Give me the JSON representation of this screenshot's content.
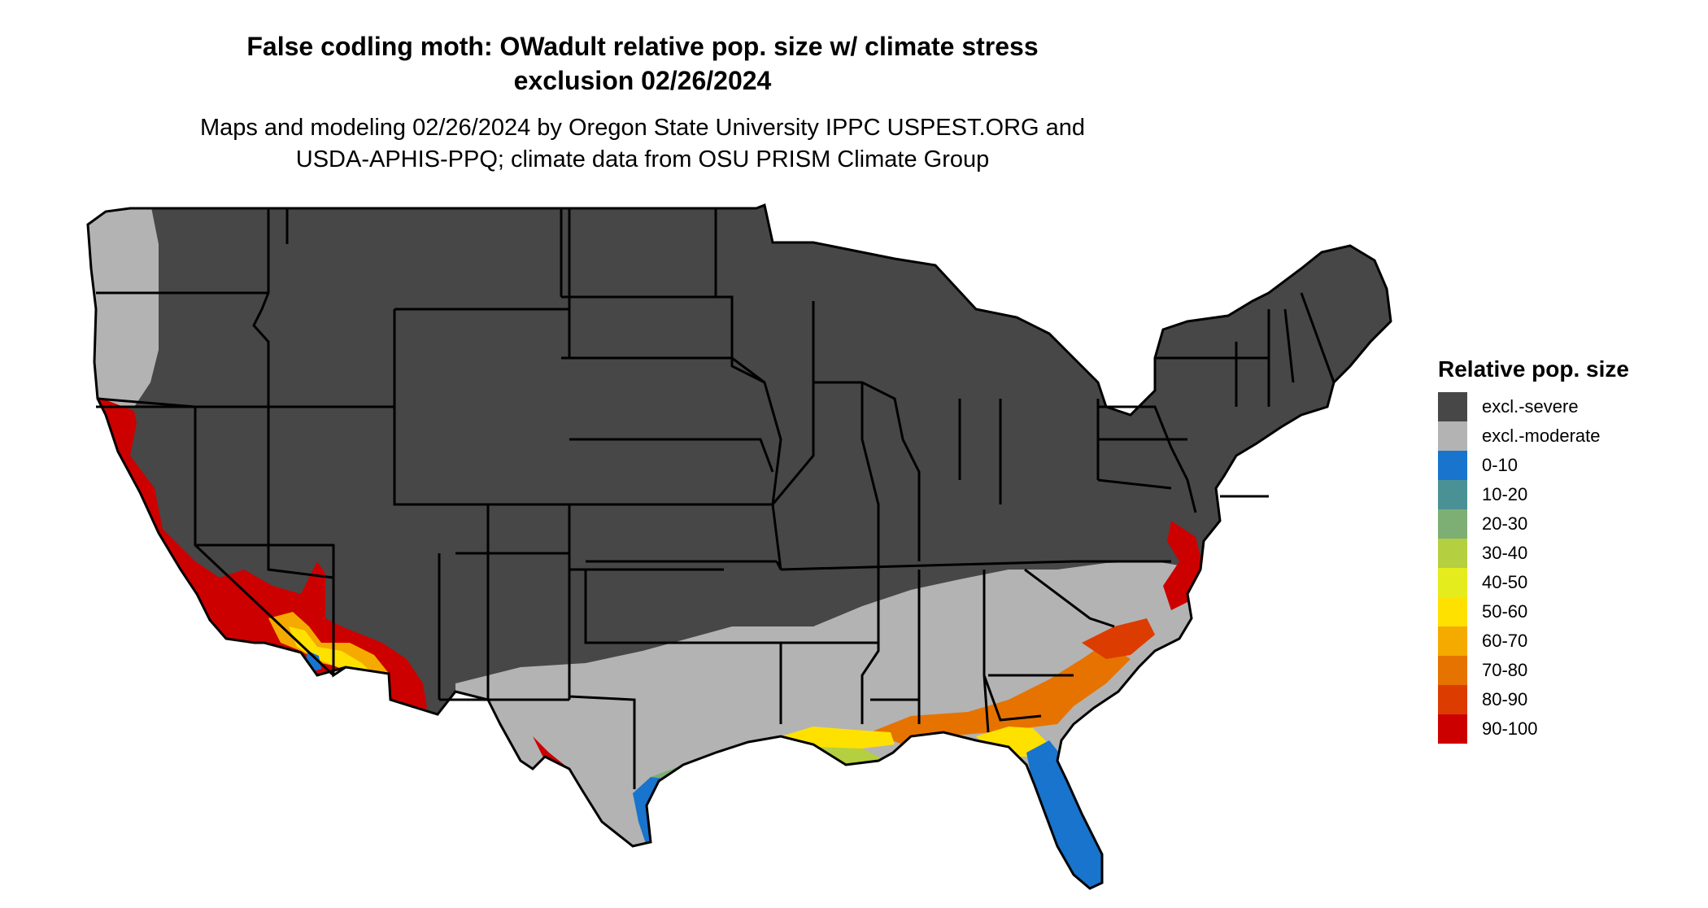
{
  "title": {
    "line1": "False codling moth: OWadult relative pop. size w/ climate stress",
    "line2": "exclusion 02/26/2024"
  },
  "subtitle": {
    "line1": "Maps and modeling 02/26/2024 by Oregon State University IPPC USPEST.ORG and",
    "line2": "USDA-APHIS-PPQ; climate data from OSU PRISM Climate Group"
  },
  "legend": {
    "title": "Relative pop. size",
    "items": [
      {
        "label": "excl.-severe",
        "color": "#474747"
      },
      {
        "label": "excl.-moderate",
        "color": "#b3b3b3"
      },
      {
        "label": "0-10",
        "color": "#1874cd"
      },
      {
        "label": "10-20",
        "color": "#4a9196"
      },
      {
        "label": "20-30",
        "color": "#7daf74"
      },
      {
        "label": "30-40",
        "color": "#b4cf3f"
      },
      {
        "label": "40-50",
        "color": "#e5ec1e"
      },
      {
        "label": "50-60",
        "color": "#ffe100"
      },
      {
        "label": "60-70",
        "color": "#f5aa00"
      },
      {
        "label": "70-80",
        "color": "#e67300"
      },
      {
        "label": "80-90",
        "color": "#dc3c00"
      },
      {
        "label": "90-100",
        "color": "#cd0000"
      }
    ]
  }
}
